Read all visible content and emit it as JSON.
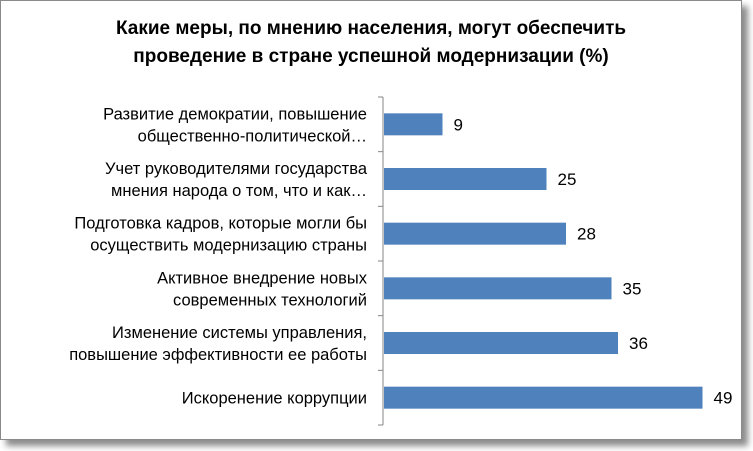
{
  "chart_data": {
    "type": "bar",
    "orientation": "horizontal",
    "title_lines": [
      "Какие меры, по мнению населения, могут обеспечить",
      "проведение в стране успешной модернизации (%)"
    ],
    "categories": [
      [
        "Развитие демократии, повышение",
        "общественно-политической…"
      ],
      [
        "Учет руководителями государства",
        "мнения народа  о том, что и как…"
      ],
      [
        "Подготовка кадров, которые могли бы",
        "осуществить модернизацию страны"
      ],
      [
        "Активное внедрение новых",
        "современных технологий"
      ],
      [
        "Изменение системы управления,",
        "повышение эффективности ее работы"
      ],
      [
        "Искоренение коррупции"
      ]
    ],
    "values": [
      9,
      25,
      28,
      35,
      36,
      49
    ],
    "xlim": [
      0,
      52
    ],
    "bar_color": "#4f81bd",
    "grid": false,
    "legend": "none"
  }
}
